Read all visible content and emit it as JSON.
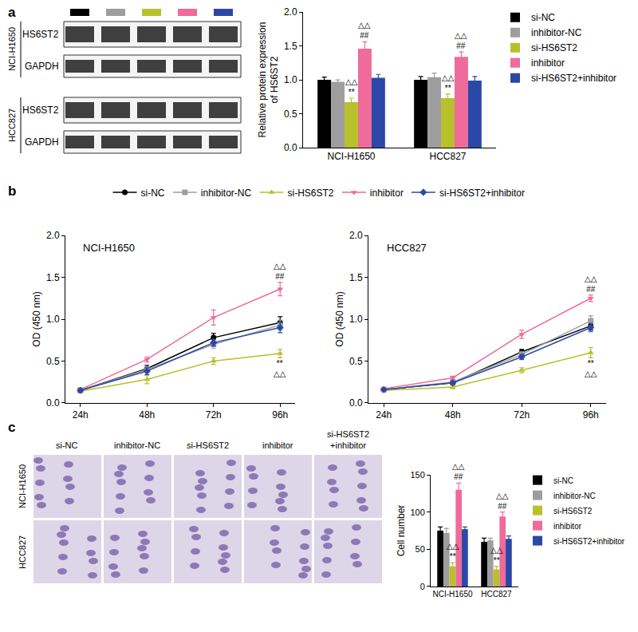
{
  "panels": [
    "a",
    "b",
    "c"
  ],
  "blot": {
    "cell_lines": [
      "NCI-H1650",
      "HCC827"
    ],
    "proteins": [
      "HS6ST2",
      "GAPDH"
    ]
  },
  "micrographs": {
    "groups": [
      "si-NC",
      "inhibitor-NC",
      "si-HS6ST2",
      "inhibitor",
      "si-HS6ST2\n+inhibitor"
    ],
    "cell_lines": [
      "NCI-H1650",
      "HCC827"
    ]
  },
  "chart_data": [
    {
      "type": "bar",
      "categories": [
        "NCI-H1650",
        "HCC827"
      ],
      "y_label": "Relative protein expression\nof HS6ST2",
      "ylim": [
        0,
        2
      ],
      "yticks": [
        {
          "value": 0,
          "label": "0.0"
        },
        0.5,
        {
          "value": 1,
          "label": "1.0"
        },
        1.5,
        {
          "value": 2,
          "label": "2.0"
        }
      ],
      "legend": "top right",
      "series": [
        {
          "name": "si-NC",
          "color": "#000000",
          "values": [
            1.0,
            1.0
          ],
          "errors": [
            0.04,
            0.05
          ]
        },
        {
          "name": "inhibitor-NC",
          "color": "#9e9e9e",
          "values": [
            0.97,
            1.04
          ],
          "errors": [
            0.03,
            0.06
          ]
        },
        {
          "name": "si-HS6ST2",
          "color": "#b8c02c",
          "values": [
            0.67,
            0.73
          ],
          "errors": [
            0.06,
            0.06
          ]
        },
        {
          "name": "inhibitor",
          "color": "#ee6b9a",
          "values": [
            1.46,
            1.34
          ],
          "errors": [
            0.1,
            0.07
          ]
        },
        {
          "name": "si-HS6ST2+inhibitor",
          "color": "#2b48a8",
          "values": [
            1.03,
            0.99
          ],
          "errors": [
            0.05,
            0.06
          ]
        }
      ],
      "annotations": [
        {
          "series": "si-HS6ST2",
          "category": "NCI-H1650",
          "text": "△△\n**"
        },
        {
          "series": "inhibitor",
          "category": "NCI-H1650",
          "text": "△△\n##"
        },
        {
          "series": "si-HS6ST2",
          "category": "HCC827",
          "text": "△△\n**"
        },
        {
          "series": "inhibitor",
          "category": "HCC827",
          "text": "△△\n##"
        }
      ]
    },
    {
      "type": "line",
      "title": "NCI-H1650",
      "categories": [
        "24h",
        "48h",
        "72h",
        "96h"
      ],
      "y_label": "OD (450 nm)",
      "ylim": [
        0,
        2
      ],
      "yticks": [
        {
          "value": 0,
          "label": "0.0"
        },
        0.5,
        {
          "value": 1,
          "label": "1.0"
        },
        1.5,
        {
          "value": 2,
          "label": "2.0"
        }
      ],
      "legend": "top",
      "series": [
        {
          "name": "si-NC",
          "color": "#000000",
          "marker": "circle",
          "values": [
            0.15,
            0.41,
            0.78,
            0.96
          ],
          "errors": [
            0.02,
            0.04,
            0.05,
            0.07
          ]
        },
        {
          "name": "inhibitor-NC",
          "color": "#9e9e9e",
          "marker": "square",
          "values": [
            0.15,
            0.4,
            0.7,
            0.93
          ],
          "errors": [
            0.02,
            0.03,
            0.05,
            0.06
          ]
        },
        {
          "name": "si-HS6ST2",
          "color": "#b8c02c",
          "marker": "triangle-up",
          "values": [
            0.14,
            0.28,
            0.5,
            0.59
          ],
          "errors": [
            0.02,
            0.05,
            0.04,
            0.05
          ]
        },
        {
          "name": "inhibitor",
          "color": "#ee6b9a",
          "marker": "triangle-down",
          "values": [
            0.16,
            0.52,
            1.02,
            1.36
          ],
          "errors": [
            0.02,
            0.03,
            0.09,
            0.08
          ]
        },
        {
          "name": "si-HS6ST2+inhibitor",
          "color": "#2b48a8",
          "marker": "diamond",
          "values": [
            0.15,
            0.38,
            0.72,
            0.9
          ],
          "errors": [
            0.02,
            0.04,
            0.04,
            0.06
          ]
        }
      ],
      "annotations": [
        {
          "series": "inhibitor",
          "category": "96h",
          "text": "△△\n##"
        },
        {
          "series": "si-HS6ST2",
          "category": "96h",
          "text": "**\n△△"
        }
      ]
    },
    {
      "type": "line",
      "title": "HCC827",
      "categories": [
        "24h",
        "48h",
        "72h",
        "96h"
      ],
      "y_label": "OD (450 nm)",
      "ylim": [
        0,
        2
      ],
      "yticks": [
        {
          "value": 0,
          "label": "0.0"
        },
        0.5,
        {
          "value": 1,
          "label": "1.0"
        },
        1.5,
        {
          "value": 2,
          "label": "2.0"
        }
      ],
      "series": [
        {
          "name": "si-NC",
          "color": "#000000",
          "marker": "circle",
          "values": [
            0.16,
            0.24,
            0.61,
            0.92
          ],
          "errors": [
            0.01,
            0.02,
            0.03,
            0.05
          ]
        },
        {
          "name": "inhibitor-NC",
          "color": "#9e9e9e",
          "marker": "square",
          "values": [
            0.16,
            0.25,
            0.58,
            0.98
          ],
          "errors": [
            0.01,
            0.02,
            0.03,
            0.06
          ]
        },
        {
          "name": "si-HS6ST2",
          "color": "#b8c02c",
          "marker": "triangle-up",
          "values": [
            0.15,
            0.19,
            0.39,
            0.6
          ],
          "errors": [
            0.01,
            0.02,
            0.03,
            0.06
          ]
        },
        {
          "name": "inhibitor",
          "color": "#ee6b9a",
          "marker": "triangle-down",
          "values": [
            0.17,
            0.3,
            0.82,
            1.25
          ],
          "errors": [
            0.01,
            0.02,
            0.05,
            0.04
          ]
        },
        {
          "name": "si-HS6ST2+inhibitor",
          "color": "#2b48a8",
          "marker": "diamond",
          "values": [
            0.16,
            0.24,
            0.55,
            0.9
          ],
          "errors": [
            0.01,
            0.02,
            0.03,
            0.05
          ]
        }
      ],
      "annotations": [
        {
          "series": "inhibitor",
          "category": "96h",
          "text": "△△\n##"
        },
        {
          "series": "si-HS6ST2",
          "category": "96h",
          "text": "**\n△△"
        }
      ]
    },
    {
      "type": "bar",
      "categories": [
        "NCI-H1650",
        "HCC827"
      ],
      "y_label": "Cell number",
      "ylim": [
        0,
        150
      ],
      "yticks": [
        0,
        50,
        100,
        150
      ],
      "legend": "top right",
      "series": [
        {
          "name": "si-NC",
          "color": "#000000",
          "values": [
            75,
            60
          ],
          "errors": [
            5,
            5
          ]
        },
        {
          "name": "inhibitor-NC",
          "color": "#9e9e9e",
          "values": [
            72,
            62
          ],
          "errors": [
            6,
            3
          ]
        },
        {
          "name": "si-HS6ST2",
          "color": "#b8c02c",
          "values": [
            27,
            23
          ],
          "errors": [
            5,
            4
          ]
        },
        {
          "name": "inhibitor",
          "color": "#ee6b9a",
          "values": [
            130,
            94
          ],
          "errors": [
            9,
            6
          ]
        },
        {
          "name": "si-HS6ST2+inhibitor",
          "color": "#2b48a8",
          "values": [
            77,
            64
          ],
          "errors": [
            3,
            4
          ]
        }
      ],
      "annotations": [
        {
          "series": "si-HS6ST2",
          "category": "NCI-H1650",
          "text": "△△\n**"
        },
        {
          "series": "inhibitor",
          "category": "NCI-H1650",
          "text": "△△\n##"
        },
        {
          "series": "si-HS6ST2",
          "category": "HCC827",
          "text": "△△\n**"
        },
        {
          "series": "inhibitor",
          "category": "HCC827",
          "text": "△△\n##"
        }
      ]
    }
  ]
}
